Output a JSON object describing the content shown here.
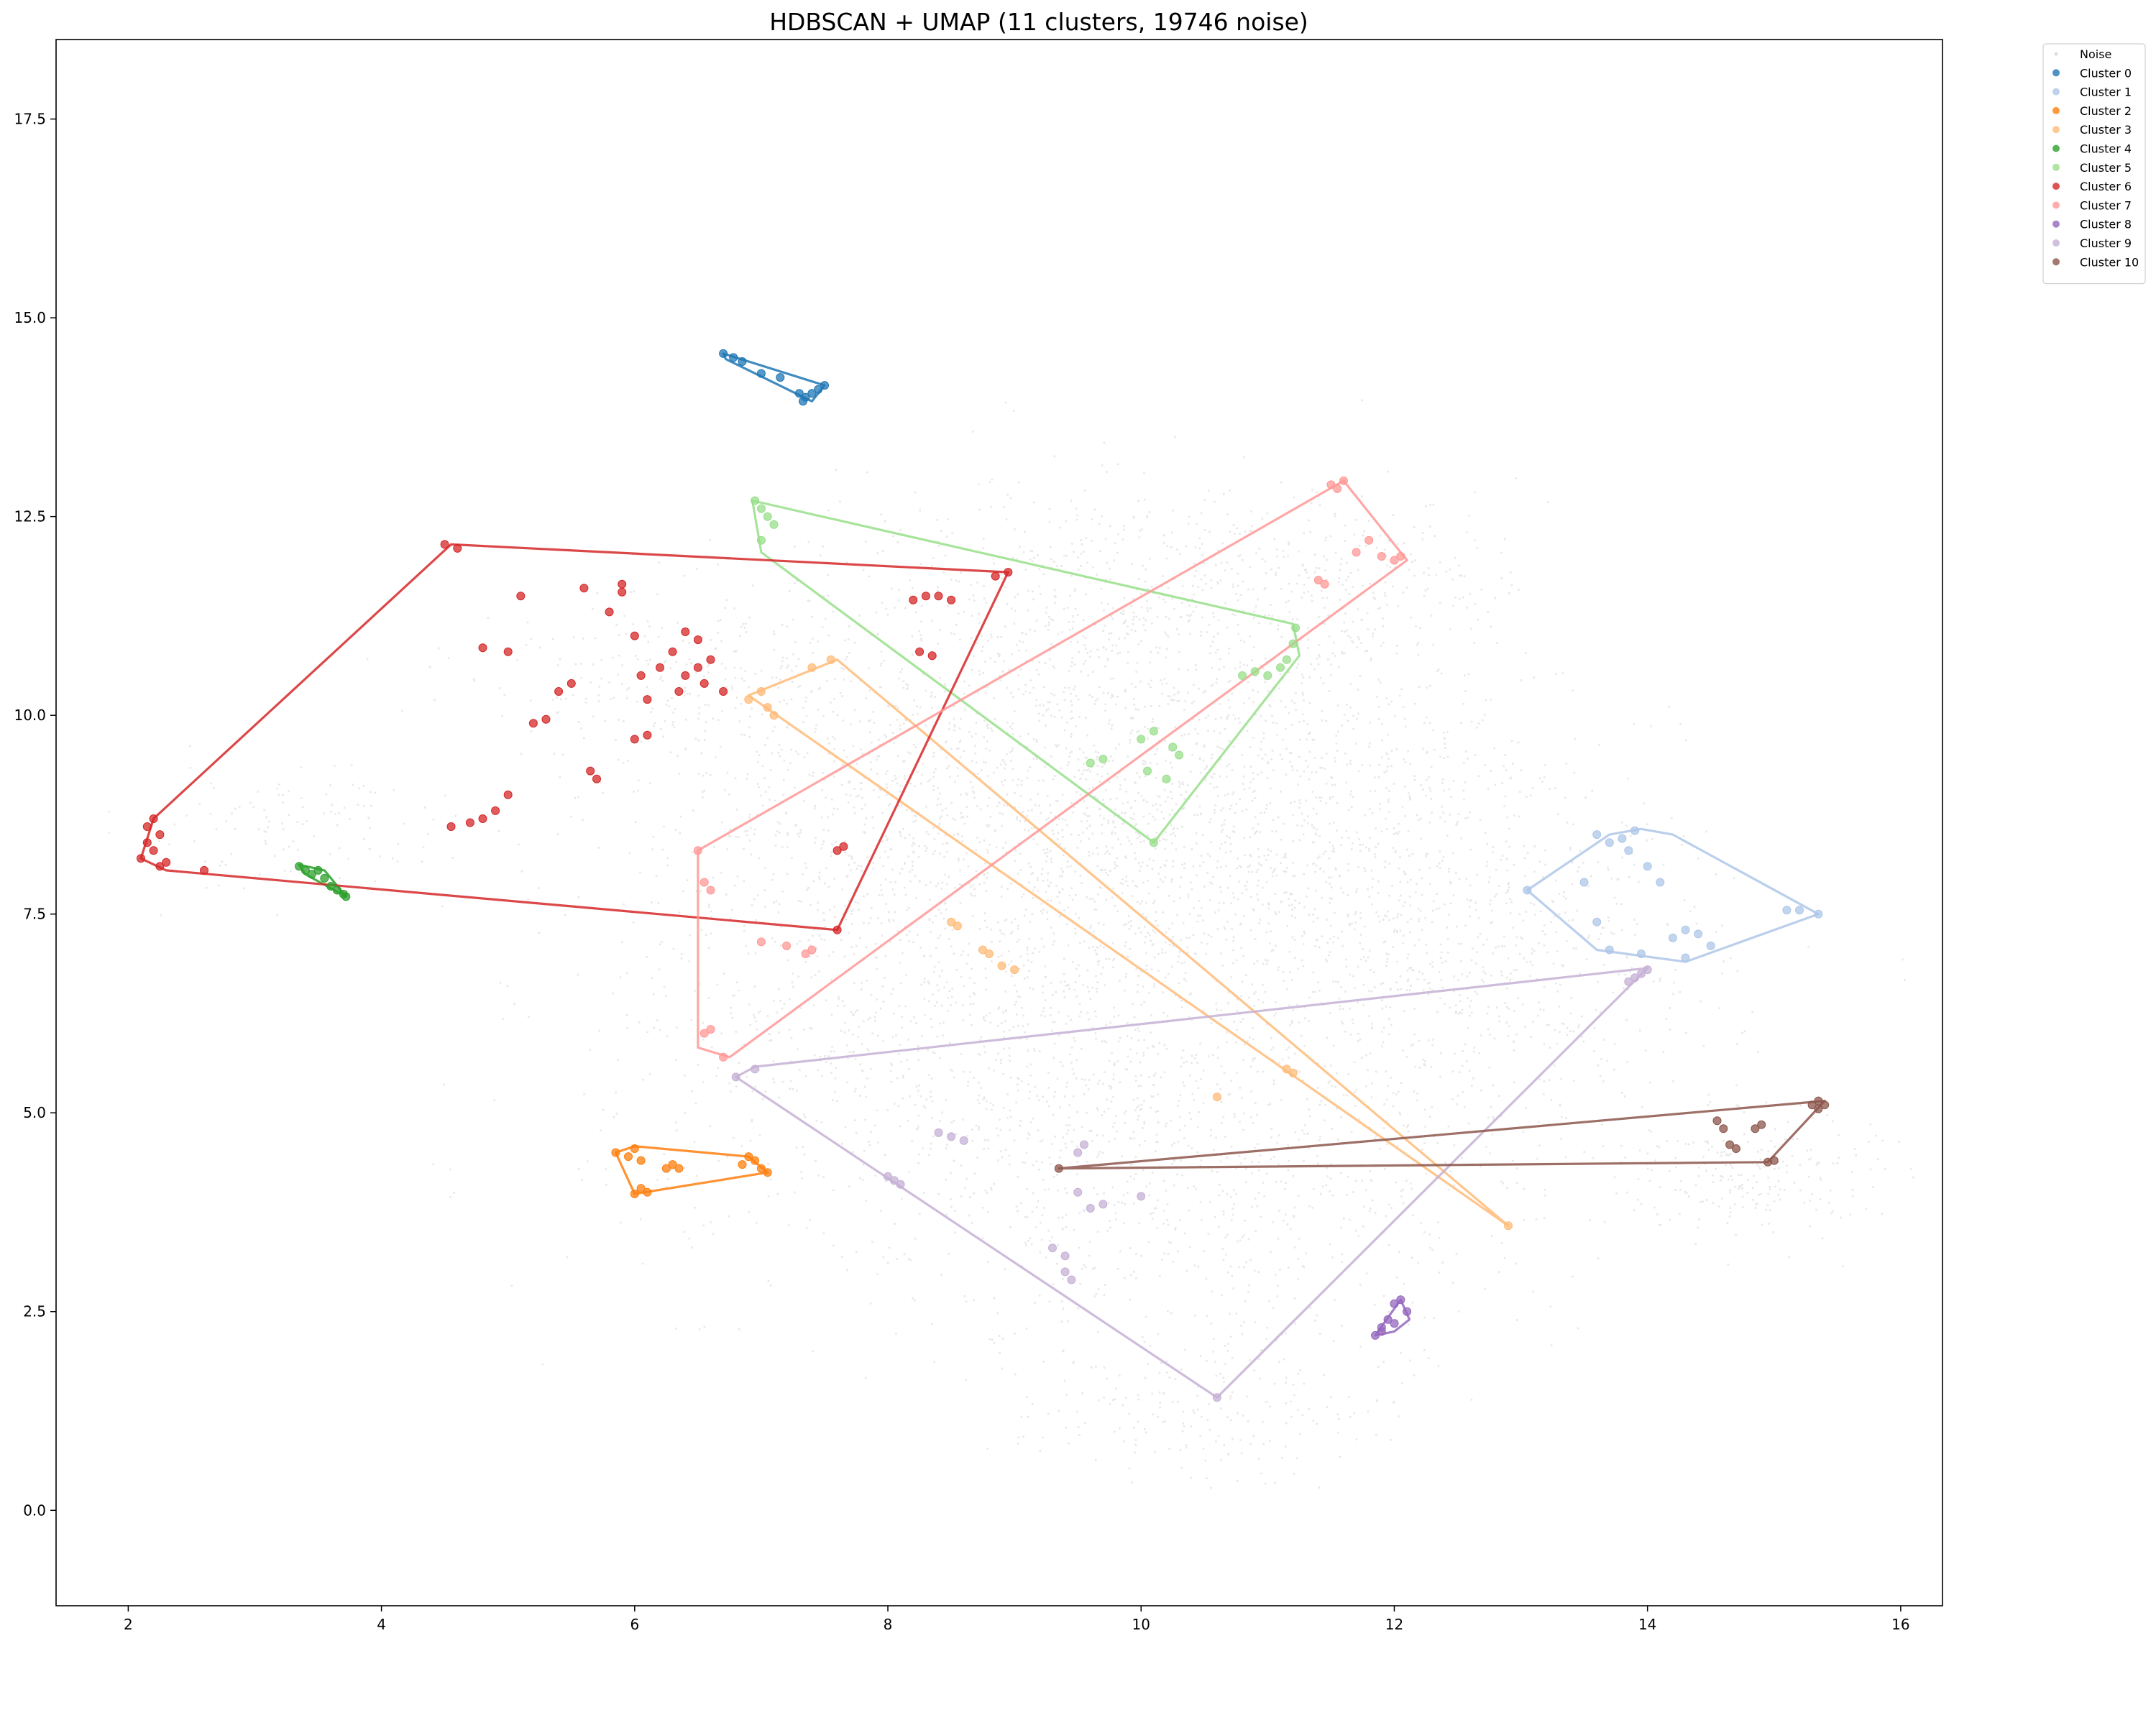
{
  "chart_data": {
    "type": "scatter",
    "title": "HDBSCAN + UMAP (11 clusters, 19746 noise)",
    "xlabel": "",
    "ylabel": "",
    "xlim": [
      1.43,
      16.33
    ],
    "ylim": [
      -1.2,
      18.5
    ],
    "x_ticks": [
      2,
      4,
      6,
      8,
      10,
      12,
      14,
      16
    ],
    "y_ticks": [
      0.0,
      2.5,
      5.0,
      7.5,
      10.0,
      12.5,
      15.0,
      17.5
    ],
    "x_tick_labels": [
      "2",
      "4",
      "6",
      "8",
      "10",
      "12",
      "14",
      "16"
    ],
    "y_tick_labels": [
      "0.0",
      "2.5",
      "5.0",
      "7.5",
      "10.0",
      "12.5",
      "15.0",
      "17.5"
    ],
    "grid": false,
    "legend_position": "outside top-right",
    "noise": {
      "name": "Noise",
      "color": "#bbbbbb",
      "count": 19746,
      "regions": [
        {
          "cx": 9.6,
          "cy": 8.6,
          "sx": 1.4,
          "sy": 1.6,
          "n": 1700
        },
        {
          "cx": 11.3,
          "cy": 8.6,
          "sx": 1.2,
          "sy": 1.5,
          "n": 900
        },
        {
          "cx": 8.4,
          "cy": 5.6,
          "sx": 1.4,
          "sy": 1.4,
          "n": 900
        },
        {
          "cx": 10.7,
          "cy": 4.0,
          "sx": 1.2,
          "sy": 1.2,
          "n": 700
        },
        {
          "cx": 9.9,
          "cy": 11.6,
          "sx": 1.1,
          "sy": 0.7,
          "n": 450
        },
        {
          "cx": 12.8,
          "cy": 6.6,
          "sx": 0.9,
          "sy": 1.0,
          "n": 450
        },
        {
          "cx": 7.6,
          "cy": 9.0,
          "sx": 0.8,
          "sy": 1.0,
          "n": 400
        },
        {
          "cx": 14.8,
          "cy": 4.2,
          "sx": 0.5,
          "sy": 0.4,
          "n": 220
        },
        {
          "cx": 6.3,
          "cy": 10.5,
          "sx": 0.8,
          "sy": 0.6,
          "n": 220
        },
        {
          "cx": 3.3,
          "cy": 8.6,
          "sx": 0.8,
          "sy": 0.4,
          "n": 120
        },
        {
          "cx": 10.3,
          "cy": 1.2,
          "sx": 0.7,
          "sy": 0.4,
          "n": 160
        },
        {
          "cx": 11.8,
          "cy": 11.8,
          "sx": 0.6,
          "sy": 0.5,
          "n": 160
        }
      ]
    },
    "series": [
      {
        "name": "Cluster 0",
        "color": "#1f77b4",
        "x": [
          6.7,
          6.78,
          6.85,
          7.0,
          7.15,
          7.3,
          7.35,
          7.4,
          7.45,
          7.5,
          7.33
        ],
        "y": [
          14.55,
          14.5,
          14.45,
          14.3,
          14.25,
          14.05,
          14.0,
          14.05,
          14.1,
          14.15,
          13.95
        ],
        "hull": [
          [
            6.7,
            14.55
          ],
          [
            7.5,
            14.15
          ],
          [
            7.4,
            13.95
          ],
          [
            6.72,
            14.48
          ]
        ]
      },
      {
        "name": "Cluster 1",
        "color": "#aec7e8",
        "x": [
          13.05,
          13.6,
          13.7,
          13.8,
          13.9,
          13.85,
          14.0,
          14.1,
          14.2,
          14.3,
          14.4,
          14.5,
          13.5,
          13.7,
          15.1,
          15.2,
          15.35,
          14.3,
          13.95,
          13.6
        ],
        "y": [
          7.8,
          8.5,
          8.4,
          8.45,
          8.55,
          8.3,
          8.1,
          7.9,
          7.2,
          7.3,
          7.25,
          7.1,
          7.9,
          7.05,
          7.55,
          7.55,
          7.5,
          6.95,
          7.0,
          7.4
        ],
        "hull": [
          [
            13.05,
            7.8
          ],
          [
            13.7,
            8.5
          ],
          [
            13.95,
            8.57
          ],
          [
            14.2,
            8.5
          ],
          [
            15.35,
            7.5
          ],
          [
            14.3,
            6.9
          ],
          [
            13.6,
            7.05
          ]
        ]
      },
      {
        "name": "Cluster 2",
        "color": "#ff7f0e",
        "x": [
          5.85,
          5.95,
          6.0,
          6.05,
          6.1,
          6.25,
          6.3,
          6.35,
          6.85,
          6.9,
          6.95,
          7.0,
          7.05,
          6.05,
          6.0
        ],
        "y": [
          4.5,
          4.45,
          4.55,
          4.4,
          4.0,
          4.3,
          4.35,
          4.3,
          4.35,
          4.45,
          4.4,
          4.3,
          4.25,
          4.05,
          3.98
        ],
        "hull": [
          [
            5.85,
            4.5
          ],
          [
            6.0,
            4.58
          ],
          [
            6.9,
            4.45
          ],
          [
            7.05,
            4.25
          ],
          [
            6.0,
            3.98
          ]
        ]
      },
      {
        "name": "Cluster 3",
        "color": "#ffbb78",
        "x": [
          6.9,
          7.0,
          7.1,
          7.4,
          7.55,
          8.5,
          8.55,
          8.75,
          8.8,
          8.9,
          9.0,
          11.15,
          11.2,
          12.9,
          10.6,
          7.05
        ],
        "y": [
          10.2,
          10.3,
          10.0,
          10.6,
          10.7,
          7.4,
          7.35,
          7.05,
          7.0,
          6.85,
          6.8,
          5.55,
          5.5,
          3.58,
          5.2,
          10.1
        ],
        "hull": [
          [
            6.9,
            10.25
          ],
          [
            7.6,
            10.7
          ],
          [
            12.9,
            3.58
          ]
        ]
      },
      {
        "name": "Cluster 4",
        "color": "#2ca02c",
        "x": [
          3.35,
          3.4,
          3.45,
          3.5,
          3.55,
          3.6,
          3.65,
          3.7,
          3.72
        ],
        "y": [
          8.1,
          8.05,
          8.0,
          8.05,
          7.95,
          7.85,
          7.8,
          7.75,
          7.72
        ],
        "hull": [
          [
            3.35,
            8.12
          ],
          [
            3.55,
            8.05
          ],
          [
            3.72,
            7.72
          ],
          [
            3.4,
            8.0
          ]
        ]
      },
      {
        "name": "Cluster 5",
        "color": "#98df8a",
        "x": [
          6.95,
          7.0,
          7.05,
          7.1,
          7.0,
          10.1,
          10.0,
          10.05,
          10.2,
          10.25,
          10.3,
          9.6,
          9.7,
          10.8,
          10.9,
          11.0,
          11.1,
          11.15,
          11.2,
          11.22,
          10.1
        ],
        "y": [
          12.7,
          12.6,
          12.5,
          12.4,
          12.2,
          9.8,
          9.7,
          9.3,
          9.2,
          9.6,
          9.5,
          9.4,
          9.45,
          10.5,
          10.55,
          10.5,
          10.6,
          10.7,
          10.9,
          11.1,
          8.4
        ],
        "hull": [
          [
            6.93,
            12.7
          ],
          [
            11.2,
            11.15
          ],
          [
            11.25,
            10.75
          ],
          [
            10.1,
            8.4
          ],
          [
            7.0,
            12.05
          ]
        ]
      },
      {
        "name": "Cluster 6",
        "color": "#d62728",
        "x": [
          2.1,
          2.15,
          2.2,
          2.25,
          2.3,
          2.2,
          2.15,
          2.25,
          2.6,
          4.5,
          4.6,
          4.55,
          4.7,
          4.8,
          4.9,
          5.0,
          5.1,
          5.2,
          5.3,
          5.4,
          5.5,
          5.6,
          5.7,
          5.8,
          5.9,
          6.0,
          6.05,
          6.1,
          6.2,
          6.3,
          6.35,
          6.4,
          6.5,
          6.55,
          6.6,
          6.7,
          5.65,
          5.0,
          4.8,
          6.0,
          6.1,
          7.6,
          7.6,
          7.65,
          8.2,
          8.3,
          8.4,
          8.5,
          8.25,
          8.35,
          8.85,
          8.95,
          5.9,
          6.4,
          6.5
        ],
        "y": [
          8.2,
          8.6,
          8.7,
          8.5,
          8.15,
          8.3,
          8.4,
          8.1,
          8.05,
          12.15,
          12.1,
          8.6,
          8.65,
          8.7,
          8.8,
          9.0,
          11.5,
          9.9,
          9.95,
          10.3,
          10.4,
          11.6,
          9.2,
          11.3,
          11.55,
          11.0,
          10.5,
          10.2,
          10.6,
          10.8,
          10.3,
          10.5,
          10.6,
          10.4,
          10.7,
          10.3,
          9.3,
          10.8,
          10.85,
          9.7,
          9.75,
          7.3,
          8.3,
          8.35,
          11.45,
          11.5,
          11.5,
          11.45,
          10.8,
          10.75,
          11.75,
          11.8,
          11.65,
          11.05,
          10.95
        ],
        "hull": [
          [
            2.1,
            8.2
          ],
          [
            2.2,
            8.7
          ],
          [
            4.55,
            12.15
          ],
          [
            8.95,
            11.8
          ],
          [
            7.6,
            7.3
          ],
          [
            2.3,
            8.05
          ]
        ]
      },
      {
        "name": "Cluster 7",
        "color": "#ff9896",
        "x": [
          6.5,
          6.55,
          6.6,
          6.7,
          7.0,
          7.2,
          7.35,
          7.4,
          6.55,
          6.6,
          11.5,
          11.55,
          11.6,
          11.4,
          11.45,
          11.9,
          12.0,
          12.05,
          11.7,
          11.8
        ],
        "y": [
          8.3,
          7.9,
          7.8,
          5.7,
          7.15,
          7.1,
          7.0,
          7.05,
          6.0,
          6.05,
          12.9,
          12.85,
          12.95,
          11.7,
          11.65,
          12.0,
          11.95,
          12.0,
          12.05,
          12.2
        ],
        "hull": [
          [
            6.5,
            8.3
          ],
          [
            11.6,
            12.95
          ],
          [
            12.1,
            11.95
          ],
          [
            6.75,
            5.7
          ],
          [
            6.5,
            5.82
          ]
        ]
      },
      {
        "name": "Cluster 8",
        "color": "#9467bd",
        "x": [
          11.85,
          11.9,
          11.95,
          12.0,
          12.05,
          12.1,
          12.0,
          11.9
        ],
        "y": [
          2.2,
          2.3,
          2.4,
          2.6,
          2.65,
          2.5,
          2.35,
          2.25
        ],
        "hull": [
          [
            11.85,
            2.2
          ],
          [
            12.05,
            2.65
          ],
          [
            12.12,
            2.4
          ],
          [
            12.0,
            2.25
          ]
        ]
      },
      {
        "name": "Cluster 9",
        "color": "#c5b0d5",
        "x": [
          6.8,
          6.95,
          8.0,
          8.05,
          8.1,
          8.4,
          8.5,
          8.6,
          9.3,
          9.4,
          9.5,
          9.6,
          9.7,
          9.5,
          9.4,
          9.45,
          9.55,
          10.0,
          10.6,
          13.9,
          13.95,
          14.0,
          13.85
        ],
        "y": [
          5.45,
          5.55,
          4.2,
          4.15,
          4.1,
          4.75,
          4.7,
          4.65,
          3.3,
          3.0,
          4.0,
          3.8,
          3.85,
          4.5,
          3.2,
          2.9,
          4.6,
          3.95,
          1.42,
          6.7,
          6.75,
          6.8,
          6.65
        ],
        "hull": [
          [
            6.8,
            5.45
          ],
          [
            6.95,
            5.58
          ],
          [
            14.0,
            6.82
          ],
          [
            10.6,
            1.42
          ]
        ]
      },
      {
        "name": "Cluster 10",
        "color": "#8c564b",
        "x": [
          9.35,
          14.55,
          14.6,
          14.65,
          14.7,
          14.85,
          14.9,
          15.0,
          15.3,
          15.35,
          15.4,
          15.35,
          14.95
        ],
        "y": [
          4.3,
          4.9,
          4.8,
          4.6,
          4.55,
          4.8,
          4.85,
          4.4,
          5.1,
          5.15,
          5.1,
          5.05,
          4.38
        ],
        "hull": [
          [
            9.35,
            4.3
          ],
          [
            15.4,
            5.15
          ],
          [
            14.95,
            4.38
          ]
        ]
      }
    ]
  }
}
